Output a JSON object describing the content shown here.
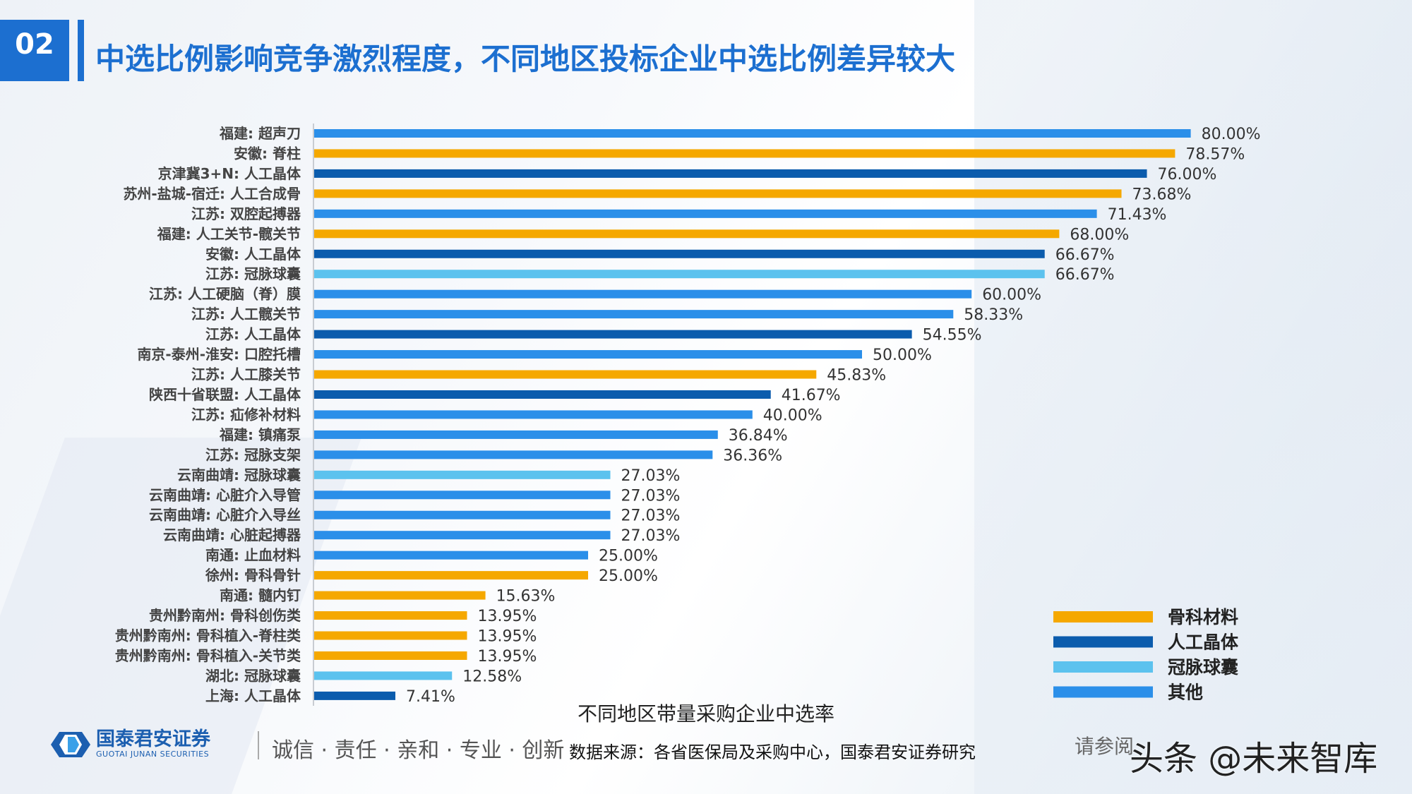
{
  "header": {
    "section_number": "02",
    "title": "中选比例影响竞争激烈程度，不同地区投标企业中选比例差异较大"
  },
  "chart_data": {
    "type": "bar",
    "orientation": "horizontal",
    "title": "不同地区带量采购企业中选率",
    "xlim": [
      0,
      100
    ],
    "unit": "%",
    "grid": false,
    "legend_placement": "bottom-right",
    "legend": [
      {
        "name": "骨科材料",
        "color": "#f5a800"
      },
      {
        "name": "人工晶体",
        "color": "#0b5cad"
      },
      {
        "name": "冠脉球囊",
        "color": "#5cc2ee"
      },
      {
        "name": "其他",
        "color": "#2b8fe9"
      }
    ],
    "categories": [
      "福建: 超声刀",
      "安徽: 脊柱",
      "京津冀3+N: 人工晶体",
      "苏州-盐城-宿迁: 人工合成骨",
      "江苏: 双腔起搏器",
      "福建: 人工关节-髋关节",
      "安徽: 人工晶体",
      "江苏: 冠脉球囊",
      "江苏: 人工硬脑（脊）膜",
      "江苏: 人工髋关节",
      "江苏: 人工晶体",
      "南京-泰州-淮安: 口腔托槽",
      "江苏: 人工膝关节",
      "陕西十省联盟: 人工晶体",
      "江苏: 疝修补材料",
      "福建: 镇痛泵",
      "江苏: 冠脉支架",
      "云南曲靖: 冠脉球囊",
      "云南曲靖: 心脏介入导管",
      "云南曲靖: 心脏介入导丝",
      "云南曲靖: 心脏起搏器",
      "南通: 止血材料",
      "徐州: 骨科骨针",
      "南通: 髓内钉",
      "贵州黔南州: 骨科创伤类",
      "贵州黔南州: 骨科植入-脊柱类",
      "贵州黔南州: 骨科植入-关节类",
      "湖北: 冠脉球囊",
      "上海: 人工晶体"
    ],
    "values": [
      80.0,
      78.57,
      76.0,
      73.68,
      71.43,
      68.0,
      66.67,
      66.67,
      60.0,
      58.33,
      54.55,
      50.0,
      45.83,
      41.67,
      40.0,
      36.84,
      36.36,
      27.03,
      27.03,
      27.03,
      27.03,
      25.0,
      25.0,
      15.63,
      13.95,
      13.95,
      13.95,
      12.58,
      7.41
    ],
    "value_labels": [
      "80.00%",
      "78.57%",
      "76.00%",
      "73.68%",
      "71.43%",
      "68.00%",
      "66.67%",
      "66.67%",
      "60.00%",
      "58.33%",
      "54.55%",
      "50.00%",
      "45.83%",
      "41.67%",
      "40.00%",
      "36.84%",
      "36.36%",
      "27.03%",
      "27.03%",
      "27.03%",
      "27.03%",
      "25.00%",
      "25.00%",
      "15.63%",
      "13.95%",
      "13.95%",
      "13.95%",
      "12.58%",
      "7.41%"
    ],
    "groups": [
      "其他",
      "骨科材料",
      "人工晶体",
      "骨科材料",
      "其他",
      "骨科材料",
      "人工晶体",
      "冠脉球囊",
      "其他",
      "其他",
      "人工晶体",
      "其他",
      "骨科材料",
      "人工晶体",
      "其他",
      "其他",
      "其他",
      "冠脉球囊",
      "其他",
      "其他",
      "其他",
      "其他",
      "骨科材料",
      "骨科材料",
      "骨科材料",
      "骨科材料",
      "骨科材料",
      "冠脉球囊",
      "人工晶体"
    ]
  },
  "footer": {
    "logo_cn": "国泰君安证券",
    "logo_en": "GUOTAI JUNAN SECURITIES",
    "motto": "诚信 · 责任 · 亲和 · 专业 · 创新",
    "source": "数据来源：各省医保局及采购中心，国泰君安证券研究",
    "disclaimer": "请参阅",
    "watermark": "头条 @未来智库"
  }
}
